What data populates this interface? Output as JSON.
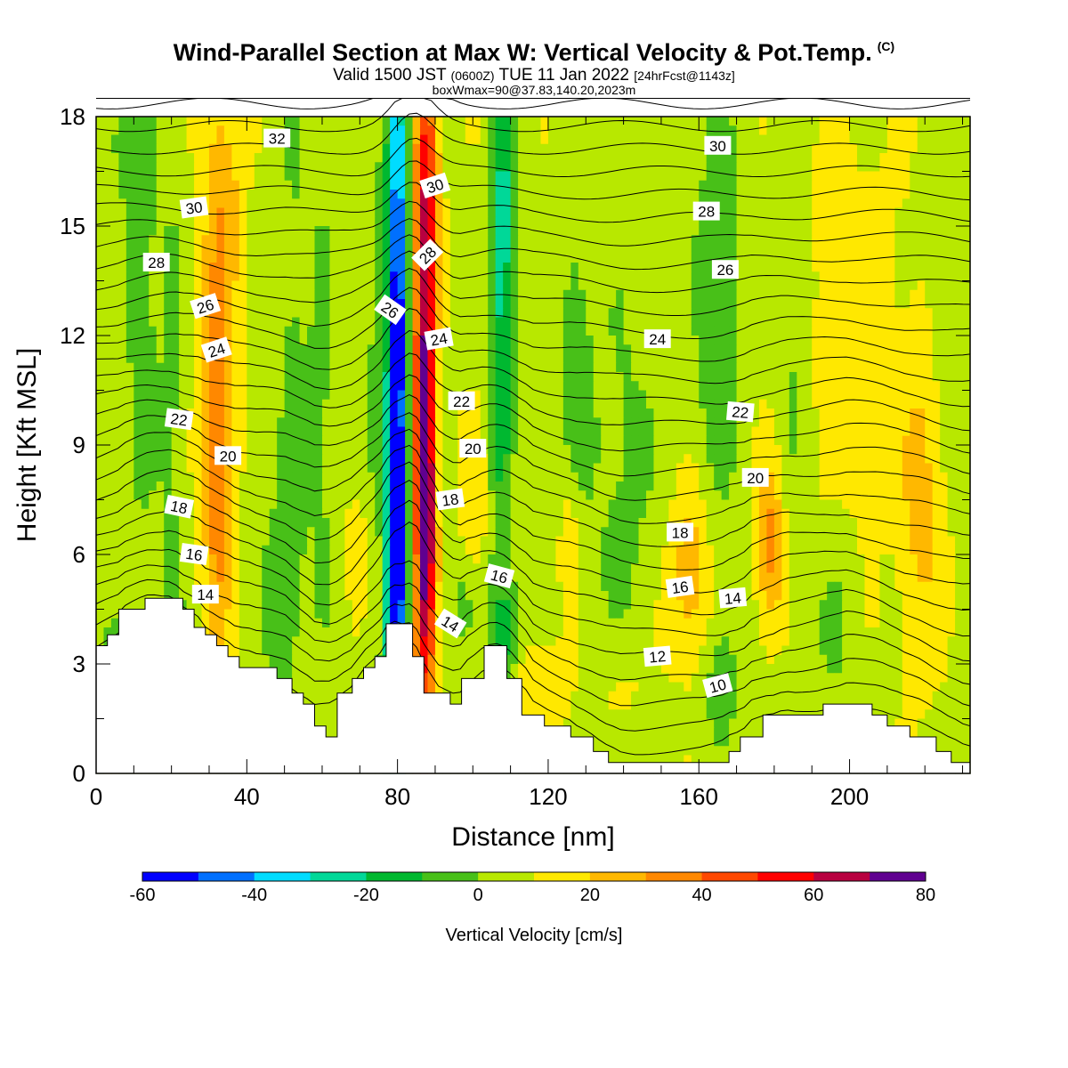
{
  "header": {
    "title_main": "Wind-Parallel Section at Max W: Vertical Velocity & Pot.Temp.",
    "title_mark": "(C)",
    "subtitle_a": "Valid 1500 JST ",
    "subtitle_b": "(0600Z)",
    "subtitle_c": " TUE 11 Jan 2022 ",
    "subtitle_d": "[24hrFcst@1143z]",
    "subtitle2": "boxWmax=90@37.83,140.20,2023m"
  },
  "colors": {
    "terrain": "#ffffff",
    "contour": "#000000",
    "scale": [
      "#0000ff",
      "#0070ff",
      "#00dcff",
      "#00d898",
      "#00b830",
      "#48c018",
      "#b8e800",
      "#ffe800",
      "#ffb800",
      "#ff8800",
      "#ff4800",
      "#ff0000",
      "#b80040",
      "#600090"
    ]
  },
  "chart_data": {
    "type": "heatmap",
    "xlabel": "Distance [nm]",
    "ylabel": "Height [Kft MSL]",
    "xlim": [
      0,
      232
    ],
    "ylim": [
      0,
      18
    ],
    "x_ticks": [
      0,
      40,
      80,
      120,
      160,
      200
    ],
    "y_ticks": [
      0,
      3,
      6,
      9,
      12,
      15,
      18
    ],
    "colorbar": {
      "title": "Vertical Velocity [cm/s]",
      "levels": [
        -60,
        -50,
        -40,
        -30,
        -20,
        -10,
        0,
        10,
        20,
        30,
        40,
        50,
        60,
        70,
        80
      ],
      "tick_labels": [
        -60,
        -40,
        -20,
        0,
        20,
        40,
        60,
        80
      ]
    },
    "terrain_profile": [
      [
        0,
        3.5
      ],
      [
        3,
        3.5
      ],
      [
        3,
        3.8
      ],
      [
        6,
        3.8
      ],
      [
        6,
        4.5
      ],
      [
        13,
        4.5
      ],
      [
        13,
        4.8
      ],
      [
        23,
        4.8
      ],
      [
        23,
        4.5
      ],
      [
        26,
        4.5
      ],
      [
        26,
        4.0
      ],
      [
        29,
        4.0
      ],
      [
        29,
        3.8
      ],
      [
        32,
        3.8
      ],
      [
        32,
        3.5
      ],
      [
        35,
        3.5
      ],
      [
        35,
        3.2
      ],
      [
        38,
        3.2
      ],
      [
        38,
        2.9
      ],
      [
        48,
        2.9
      ],
      [
        48,
        2.6
      ],
      [
        52,
        2.6
      ],
      [
        52,
        2.2
      ],
      [
        55,
        2.2
      ],
      [
        55,
        1.9
      ],
      [
        58,
        1.9
      ],
      [
        58,
        1.3
      ],
      [
        61,
        1.3
      ],
      [
        61,
        1.0
      ],
      [
        64,
        1.0
      ],
      [
        64,
        2.2
      ],
      [
        68,
        2.2
      ],
      [
        68,
        2.6
      ],
      [
        71,
        2.6
      ],
      [
        71,
        2.9
      ],
      [
        74,
        2.9
      ],
      [
        74,
        3.2
      ],
      [
        77,
        3.2
      ],
      [
        77,
        4.1
      ],
      [
        84,
        4.1
      ],
      [
        84,
        3.2
      ],
      [
        87,
        3.2
      ],
      [
        87,
        2.2
      ],
      [
        94,
        2.2
      ],
      [
        94,
        1.9
      ],
      [
        97,
        1.9
      ],
      [
        97,
        2.6
      ],
      [
        103,
        2.6
      ],
      [
        103,
        3.5
      ],
      [
        109,
        3.5
      ],
      [
        109,
        2.6
      ],
      [
        113,
        2.6
      ],
      [
        113,
        1.6
      ],
      [
        119,
        1.6
      ],
      [
        119,
        1.3
      ],
      [
        126,
        1.3
      ],
      [
        126,
        1.0
      ],
      [
        132,
        1.0
      ],
      [
        132,
        0.6
      ],
      [
        136,
        0.6
      ],
      [
        136,
        0.3
      ],
      [
        168,
        0.3
      ],
      [
        168,
        0.6
      ],
      [
        171,
        0.6
      ],
      [
        171,
        1.0
      ],
      [
        177,
        1.0
      ],
      [
        177,
        1.6
      ],
      [
        193,
        1.6
      ],
      [
        193,
        1.9
      ],
      [
        206,
        1.9
      ],
      [
        206,
        1.6
      ],
      [
        210,
        1.6
      ],
      [
        210,
        1.3
      ],
      [
        216,
        1.3
      ],
      [
        216,
        1.0
      ],
      [
        223,
        1.0
      ],
      [
        223,
        0.6
      ],
      [
        227,
        0.6
      ],
      [
        227,
        0.3
      ],
      [
        232,
        0.3
      ]
    ],
    "w_features": [
      {
        "x": 80,
        "y": 11,
        "sx": 2.0,
        "sy": 8,
        "w": -65
      },
      {
        "x": 79,
        "y": 5.5,
        "sx": 1.5,
        "sy": 2.5,
        "w": -35
      },
      {
        "x": 87,
        "y": 10,
        "sx": 2.0,
        "sy": 7.5,
        "w": 58
      },
      {
        "x": 88,
        "y": 7.0,
        "sx": 1.6,
        "sy": 2.5,
        "w": 28
      },
      {
        "x": 89,
        "y": 16,
        "sx": 1.8,
        "sy": 2.5,
        "w": 18
      },
      {
        "x": 108,
        "y": 15,
        "sx": 2.0,
        "sy": 3.5,
        "w": -32
      },
      {
        "x": 107,
        "y": 8,
        "sx": 2.5,
        "sy": 4,
        "w": -14
      },
      {
        "x": 109,
        "y": 3.8,
        "sx": 2.5,
        "sy": 1.2,
        "w": -18
      },
      {
        "x": 97,
        "y": 4.5,
        "sx": 2.5,
        "sy": 0.9,
        "w": -10
      },
      {
        "x": 32,
        "y": 11,
        "sx": 3.0,
        "sy": 6,
        "w": 23
      },
      {
        "x": 33,
        "y": 7.5,
        "sx": 2.2,
        "sy": 2,
        "w": 12
      },
      {
        "x": 36,
        "y": 15.5,
        "sx": 2.5,
        "sy": 2,
        "w": 10
      },
      {
        "x": 12,
        "y": 13,
        "sx": 3.0,
        "sy": 5,
        "w": -14
      },
      {
        "x": 6,
        "y": 17.5,
        "sx": 5,
        "sy": 1.5,
        "w": -10
      },
      {
        "x": 20,
        "y": 10,
        "sx": 2.5,
        "sy": 7,
        "w": -10
      },
      {
        "x": 12,
        "y": 3.7,
        "sx": 10,
        "sy": 0.7,
        "w": -10
      },
      {
        "x": 52,
        "y": 11,
        "sx": 3.0,
        "sy": 7,
        "w": -10
      },
      {
        "x": 60,
        "y": 10,
        "sx": 3.0,
        "sy": 6,
        "w": -10
      },
      {
        "x": 48,
        "y": 5,
        "sx": 4,
        "sy": 2.2,
        "w": -11
      },
      {
        "x": 74,
        "y": 9,
        "sx": 3.0,
        "sy": 7,
        "w": -10
      },
      {
        "x": 71,
        "y": 6.2,
        "sx": 3,
        "sy": 1.5,
        "w": 10
      },
      {
        "x": 101,
        "y": 7.5,
        "sx": 3,
        "sy": 1.5,
        "w": 9
      },
      {
        "x": 127,
        "y": 11.5,
        "sx": 3.0,
        "sy": 3,
        "w": -12
      },
      {
        "x": 126,
        "y": 6,
        "sx": 2,
        "sy": 1.5,
        "w": 14
      },
      {
        "x": 140,
        "y": 8,
        "sx": 8,
        "sy": 5,
        "w": -10
      },
      {
        "x": 165,
        "y": 13,
        "sx": 5,
        "sy": 5,
        "w": -14
      },
      {
        "x": 166,
        "y": 2.5,
        "sx": 3,
        "sy": 1.2,
        "w": -16
      },
      {
        "x": 157,
        "y": 5,
        "sx": 5,
        "sy": 1.5,
        "w": 14
      },
      {
        "x": 158,
        "y": 6.5,
        "sx": 3,
        "sy": 1.5,
        "w": 10
      },
      {
        "x": 179,
        "y": 6.3,
        "sx": 2.5,
        "sy": 1.5,
        "w": 28
      },
      {
        "x": 185,
        "y": 12,
        "sx": 3,
        "sy": 4,
        "w": -10
      },
      {
        "x": 196,
        "y": 4,
        "sx": 4,
        "sy": 1.6,
        "w": -10
      },
      {
        "x": 219,
        "y": 7.5,
        "sx": 4,
        "sy": 3,
        "w": 16
      },
      {
        "x": 205,
        "y": 9,
        "sx": 3,
        "sy": 1.5,
        "w": 9
      },
      {
        "x": 226,
        "y": 14,
        "sx": 4,
        "sy": 3,
        "w": -8
      },
      {
        "x": 118,
        "y": 2.4,
        "sx": 5,
        "sy": 0.8,
        "w": 12
      },
      {
        "x": 140,
        "y": 2.5,
        "sx": 6,
        "sy": 1,
        "w": 8
      },
      {
        "x": 200,
        "y": 13,
        "sx": 12,
        "sy": 4,
        "w": 5
      }
    ],
    "theta_labels": [
      {
        "t": "32",
        "x": 48,
        "y": 17.4,
        "r": 0
      },
      {
        "t": "30",
        "x": 26,
        "y": 15.5,
        "r": -8
      },
      {
        "t": "28",
        "x": 16,
        "y": 14.0,
        "r": 0
      },
      {
        "t": "26",
        "x": 29,
        "y": 12.8,
        "r": -18
      },
      {
        "t": "24",
        "x": 32,
        "y": 11.6,
        "r": -18
      },
      {
        "t": "22",
        "x": 22,
        "y": 9.7,
        "r": 8
      },
      {
        "t": "20",
        "x": 35,
        "y": 8.7,
        "r": 0
      },
      {
        "t": "18",
        "x": 22,
        "y": 7.3,
        "r": 12
      },
      {
        "t": "16",
        "x": 26,
        "y": 6.0,
        "r": 8
      },
      {
        "t": "14",
        "x": 29,
        "y": 4.9,
        "r": 0
      },
      {
        "t": "30",
        "x": 90,
        "y": 16.1,
        "r": -18
      },
      {
        "t": "28",
        "x": 88,
        "y": 14.2,
        "r": -45
      },
      {
        "t": "26",
        "x": 78,
        "y": 12.7,
        "r": 35
      },
      {
        "t": "24",
        "x": 91,
        "y": 11.9,
        "r": -10
      },
      {
        "t": "22",
        "x": 97,
        "y": 10.2,
        "r": 0
      },
      {
        "t": "20",
        "x": 100,
        "y": 8.9,
        "r": 0
      },
      {
        "t": "18",
        "x": 94,
        "y": 7.5,
        "r": -8
      },
      {
        "t": "16",
        "x": 107,
        "y": 5.4,
        "r": 15
      },
      {
        "t": "14",
        "x": 94,
        "y": 4.1,
        "r": 32
      },
      {
        "t": "30",
        "x": 165,
        "y": 17.2,
        "r": 0
      },
      {
        "t": "28",
        "x": 162,
        "y": 15.4,
        "r": 0
      },
      {
        "t": "26",
        "x": 167,
        "y": 13.8,
        "r": 0
      },
      {
        "t": "24",
        "x": 149,
        "y": 11.9,
        "r": 0
      },
      {
        "t": "22",
        "x": 171,
        "y": 9.9,
        "r": 5
      },
      {
        "t": "20",
        "x": 175,
        "y": 8.1,
        "r": 0
      },
      {
        "t": "18",
        "x": 155,
        "y": 6.6,
        "r": 0
      },
      {
        "t": "16",
        "x": 155,
        "y": 5.1,
        "r": -8
      },
      {
        "t": "14",
        "x": 169,
        "y": 4.8,
        "r": -5
      },
      {
        "t": "12",
        "x": 149,
        "y": 3.2,
        "r": -5
      },
      {
        "t": "10",
        "x": 165,
        "y": 2.4,
        "r": -15
      }
    ]
  }
}
